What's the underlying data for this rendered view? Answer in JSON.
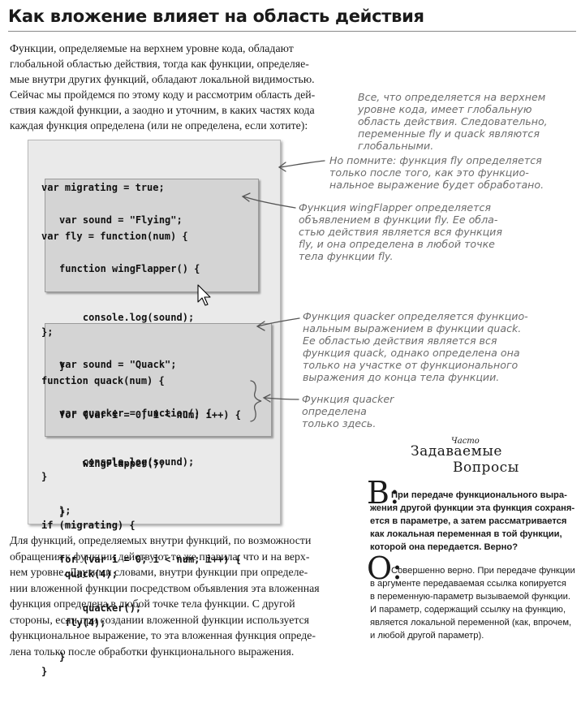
{
  "title": "Как вложение влияет на область действия",
  "intro_lines": [
    "Функции, определяемые на верхнем уровне кода, обладают",
    "глобальной областью действия, тогда как функции, определяе-",
    "мые внутри других функций, обладают локальной видимостью.",
    "Сейчас мы пройдемся по этому коду и рассмотрим область дей-",
    "ствия каждой функции, а заодно и уточним, в каких частях кода",
    "каждая функция определена (или не определена, если хотите):"
  ],
  "code": {
    "outer_lines": [
      "var migrating = true;",
      "var fly = function(num) {",
      "};",
      "function quack(num) {",
      "}",
      "if (migrating) {",
      "    quack(4);",
      "    fly(4);",
      "}"
    ],
    "fly_block": [
      "var sound = \"Flying\";",
      "function wingFlapper() {",
      "    console.log(sound);",
      "}",
      "for (var i = 0; i < num; i++) {",
      "    wingFlapper();",
      "}"
    ],
    "quack_block": [
      "var sound = \"Quack\";",
      "var quacker = function() {",
      "    console.log(sound);",
      "};",
      "for (var i = 0; i < num; i++) {",
      "    quacker();",
      "}"
    ]
  },
  "notes": {
    "global": [
      "Все, что определяется на верхнем",
      "уровне кода, имеет глобальную",
      "область действия. Следовательно,",
      "переменные fly и quack являются",
      "глобальными."
    ],
    "fly_def": [
      "Но помните: функция fly определяется",
      "только после того, как это функцио-",
      "нальное выражение будет обработано."
    ],
    "wingflapper": [
      "Функция wingFlapper определяется",
      "объявлением в функции fly. Ее обла-",
      "стью действия является вся функция",
      "fly, и она определена в любой точке",
      "тела функции fly."
    ],
    "quacker_expr": [
      "Функция quacker определяется функцио-",
      "нальным выражением в функции quack.",
      "Ее областью действия является вся",
      "функция quack, однако определена она",
      "только на участке от функционального",
      "выражения до конца тела функции."
    ],
    "quacker_here": [
      "Функция quacker",
      "определена",
      "только здесь."
    ]
  },
  "faq": {
    "small": "Часто",
    "big1": "Задаваемые",
    "big2": "Вопросы",
    "q_letter": "В:",
    "q_lines": [
      "При передаче функционального выра-",
      "жения другой функции эта функция сохраня-",
      "ется в параметре, а затем рассматривается",
      "как локальная переменная в той функции,",
      "которой она передается. Верно?"
    ],
    "a_letter": "О:",
    "a_lines": [
      "Совершенно верно. При передаче функции",
      "в аргументе передаваемая ссылка копируется",
      "в переменную-параметр вызываемой функции.",
      "И параметр, содержащий ссылку на функцию,",
      "является локальной переменной (как, впрочем,",
      "и любой другой параметр)."
    ]
  },
  "outro_lines": [
    "Для функций, определяемых внутри функций, по возможности",
    "обращения к функции действуют те же правила, что и на верх-",
    "нем уровне. Другими словами, внутри функции при определе-",
    "нии вложенной функции посредством объявления эта вложенная",
    "функция определена в любой точке тела функции. С другой",
    "стороны, если при создании вложенной функции используется",
    "функциональное выражение, то эта вложенная функция опреде-",
    "лена только после обработки функционального выражения."
  ]
}
